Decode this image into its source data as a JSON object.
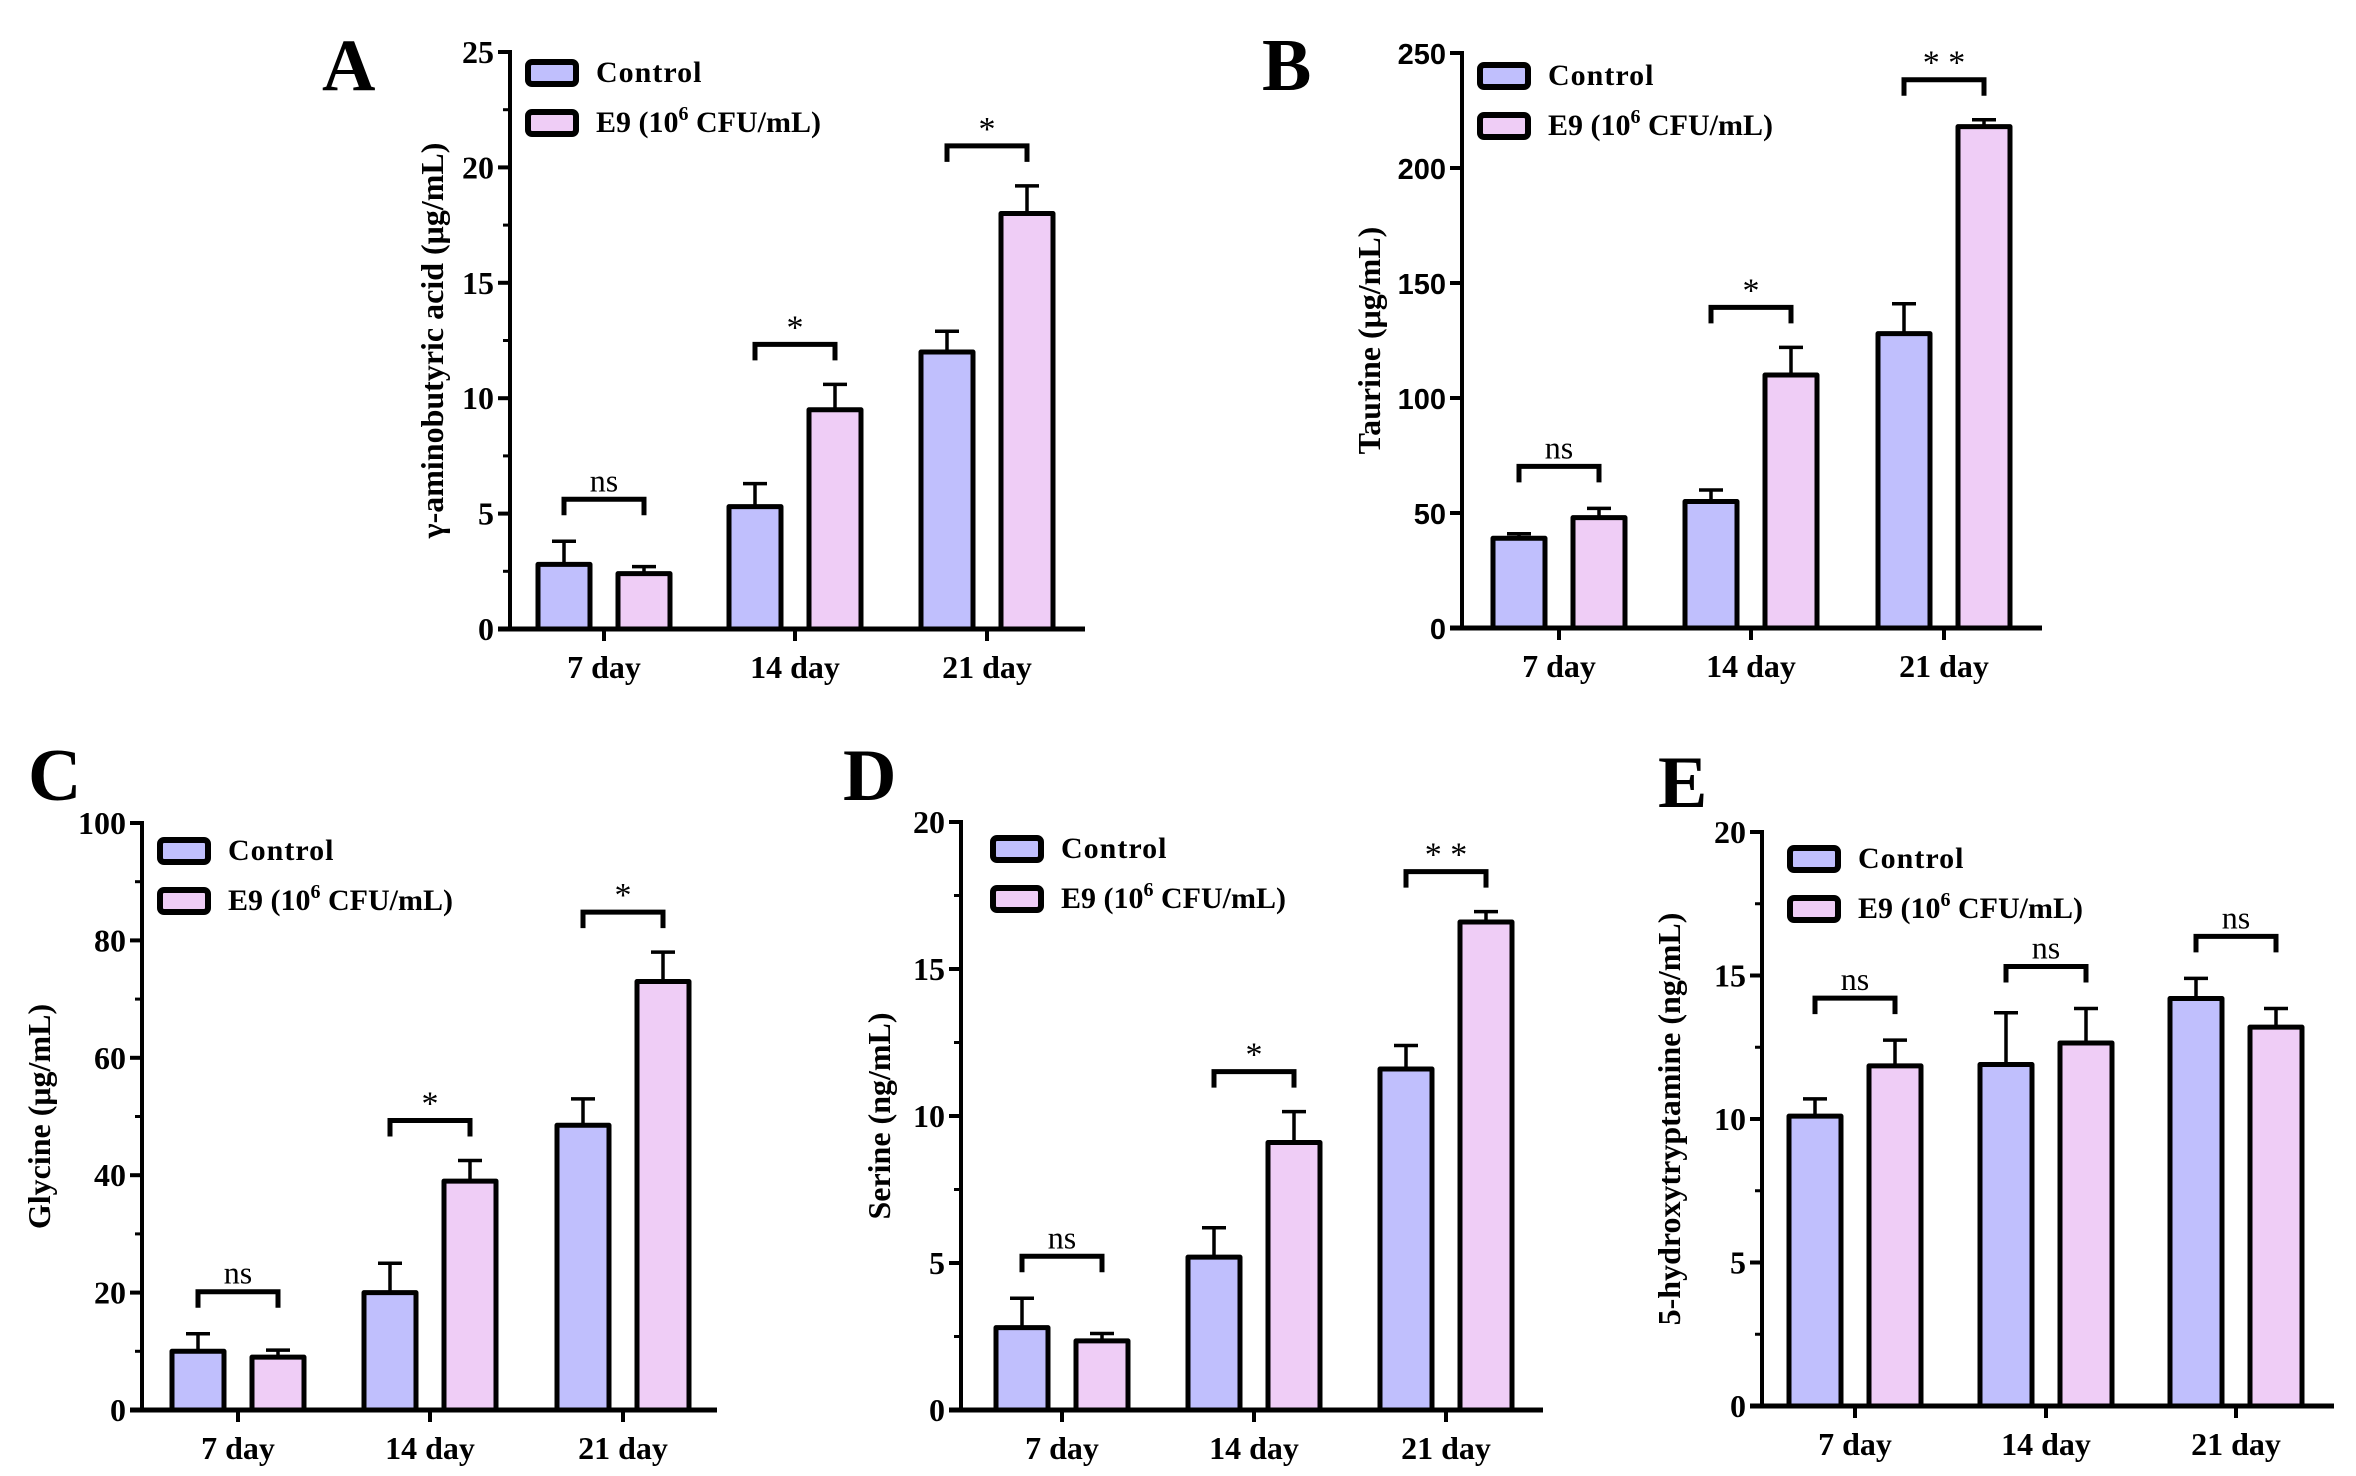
{
  "colors": {
    "control": "#c0bffd",
    "e9": "#efcdf6",
    "stroke": "#000000"
  },
  "legend": {
    "control": "Control",
    "e9_prefix": "E9 (10",
    "e9_sup": "6",
    "e9_suffix": " CFU/mL)"
  },
  "chart_data": [
    {
      "panel": "A",
      "type": "bar",
      "title": "",
      "ylabel": "γ-aminobutyric acid (μg/mL)",
      "xlabel": "",
      "categories": [
        "7 day",
        "14 day",
        "21 day"
      ],
      "ylim": [
        0,
        25
      ],
      "yticks": [
        0,
        5,
        10,
        15,
        20,
        25
      ],
      "series": [
        {
          "name": "Control",
          "values": [
            2.8,
            5.3,
            12.0
          ],
          "error_upper": [
            3.8,
            6.3,
            12.9
          ]
        },
        {
          "name": "E9 (10^6 CFU/mL)",
          "values": [
            2.4,
            9.5,
            18.0
          ],
          "error_upper": [
            2.7,
            10.6,
            19.2
          ]
        }
      ],
      "significance": [
        "ns",
        "*",
        "*"
      ],
      "legend": "top-left"
    },
    {
      "panel": "B",
      "type": "bar",
      "title": "",
      "ylabel": "Taurine  (μg/mL)",
      "xlabel": "",
      "categories": [
        "7 day",
        "14 day",
        "21 day"
      ],
      "ylim": [
        0,
        250
      ],
      "yticks": [
        0,
        50,
        100,
        150,
        200,
        250
      ],
      "series": [
        {
          "name": "Control",
          "values": [
            39,
            55,
            128
          ],
          "error_upper": [
            41,
            60,
            141
          ]
        },
        {
          "name": "E9 (10^6 CFU/mL)",
          "values": [
            48,
            110,
            218
          ],
          "error_upper": [
            52,
            122,
            221
          ]
        }
      ],
      "significance": [
        "ns",
        "*",
        "**"
      ],
      "legend": "top-left"
    },
    {
      "panel": "C",
      "type": "bar",
      "title": "",
      "ylabel": "Glycine (μg/mL)",
      "xlabel": "",
      "categories": [
        "7 day",
        "14 day",
        "21 day"
      ],
      "ylim": [
        0,
        100
      ],
      "yticks": [
        0,
        20,
        40,
        60,
        80,
        100
      ],
      "series": [
        {
          "name": "Control",
          "values": [
            10,
            20,
            48.5
          ],
          "error_upper": [
            13,
            25,
            53
          ]
        },
        {
          "name": "E9 (10^6 CFU/mL)",
          "values": [
            9,
            39,
            73
          ],
          "error_upper": [
            10.2,
            42.5,
            78
          ]
        }
      ],
      "significance": [
        "ns",
        "*",
        "*"
      ],
      "legend": "top-left"
    },
    {
      "panel": "D",
      "type": "bar",
      "title": "",
      "ylabel": "Serine (ng/mL)",
      "xlabel": "",
      "categories": [
        "7 day",
        "14 day",
        "21 day"
      ],
      "ylim": [
        0,
        20
      ],
      "yticks": [
        0,
        5,
        10,
        15,
        20
      ],
      "series": [
        {
          "name": "Control",
          "values": [
            2.8,
            5.2,
            11.6
          ],
          "error_upper": [
            3.8,
            6.2,
            12.4
          ]
        },
        {
          "name": "E9 (10^6 CFU/mL)",
          "values": [
            2.35,
            9.1,
            16.6
          ],
          "error_upper": [
            2.6,
            10.15,
            16.95
          ]
        }
      ],
      "significance": [
        "ns",
        "*",
        "**"
      ],
      "legend": "top-left"
    },
    {
      "panel": "E",
      "type": "bar",
      "title": "",
      "ylabel": "5-hydroxytryptamine (ng/mL)",
      "xlabel": "",
      "categories": [
        "7 day",
        "14 day",
        "21 day"
      ],
      "ylim": [
        0,
        20
      ],
      "yticks": [
        0,
        5,
        10,
        15,
        20
      ],
      "series": [
        {
          "name": "Control",
          "values": [
            10.1,
            11.9,
            14.2
          ],
          "error_upper": [
            10.7,
            13.7,
            14.9
          ]
        },
        {
          "name": "E9 (10^6 CFU/mL)",
          "values": [
            11.85,
            12.65,
            13.2
          ],
          "error_upper": [
            12.75,
            13.85,
            13.85
          ]
        }
      ],
      "significance": [
        "ns",
        "ns",
        "ns"
      ],
      "legend": "top-left"
    }
  ]
}
